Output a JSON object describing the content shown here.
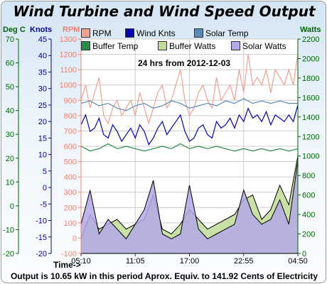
{
  "title": "Wind Turbine and Wind Speed Output",
  "subtitle": "24 hrs from 2012-12-03",
  "footer": "Output is 10.65 kW in this period Aprox. Equiv. to 141.92 Cents of Electricity",
  "time_label": "Time->",
  "axis_titles": {
    "deg_c": "Deg C",
    "knots": "Knots",
    "rpm": "RPM",
    "watts": "Watts"
  },
  "colors": {
    "rpm": "#f0a090",
    "wind_knts": "#0000b4",
    "solar_temp": "#5a8ab4",
    "buffer_temp": "#2a8a4a",
    "buffer_watts": "#c0dc98",
    "solar_watts": "#b4a8e8",
    "deg_axis": "#006400",
    "knots_axis": "#0000a0",
    "rpm_axis": "#f08070",
    "watts_axis": "#006400",
    "grid": "#cccccc",
    "frame": "#9a9a9a"
  },
  "legend": {
    "rpm": "RPM",
    "wind_knts": "Wind Knts",
    "solar_temp": "Solar Temp",
    "buffer_temp": "Buffer Temp",
    "buffer_watts": "Buffer Watts",
    "solar_watts": "Solar Watts"
  },
  "chart_data": {
    "type": "line",
    "title": "Wind Turbine and Wind Speed Output",
    "subtitle": "24 hrs from 2012-12-03",
    "x_ticks": [
      "05:10",
      "11:05",
      "17:00",
      "22:55",
      "04:50"
    ],
    "axes": {
      "deg_c": {
        "ticks": [
          "70",
          "60",
          "50",
          "40",
          "30",
          "20",
          "10",
          "0",
          "-10",
          "-20"
        ],
        "range": [
          -20,
          70
        ]
      },
      "knots": {
        "ticks": [
          "45",
          "40",
          "35",
          "30",
          "25",
          "20",
          "15",
          "10",
          "5",
          "0",
          "-5",
          "-10",
          "-15",
          "-20"
        ],
        "range": [
          -20,
          45
        ]
      },
      "rpm": {
        "ticks": [
          "1300",
          "1200",
          "1100",
          "1000",
          "900",
          "800",
          "700",
          "600",
          "500",
          "400",
          "300",
          "200",
          "100",
          "0",
          "-100"
        ],
        "range": [
          -100,
          1300
        ]
      },
      "watts": {
        "ticks": [
          "2200",
          "2000",
          "1800",
          "1600",
          "1400",
          "1200",
          "1000",
          "800",
          "600",
          "400",
          "200",
          "0"
        ],
        "range": [
          0,
          2200
        ]
      }
    },
    "series": [
      {
        "name": "RPM",
        "axis": "rpm",
        "kind": "line",
        "x": [
          0,
          0.5,
          1,
          1.5,
          2,
          2.5,
          3,
          3.5,
          4,
          4.5,
          5,
          5.5,
          6,
          6.5,
          7,
          7.5,
          8,
          8.5,
          9,
          9.5,
          10,
          10.5,
          11,
          11.5,
          12,
          12.5,
          13,
          13.5,
          14,
          14.5,
          15,
          15.5,
          16,
          16.5,
          17,
          17.5,
          18,
          18.5,
          19,
          19.5,
          20,
          20.5,
          21,
          21.5,
          22,
          22.5,
          23,
          23.5,
          24
        ],
        "values": [
          900,
          1000,
          850,
          950,
          1050,
          800,
          750,
          850,
          900,
          800,
          850,
          900,
          800,
          950,
          850,
          750,
          850,
          950,
          1000,
          850,
          900,
          1000,
          1100,
          900,
          800,
          850,
          950,
          1000,
          900,
          850,
          1050,
          900,
          950,
          1000,
          900,
          1100,
          950,
          1200,
          1000,
          1050,
          1000,
          1100,
          950,
          1100,
          1050,
          1000,
          1100,
          1000,
          1200
        ]
      },
      {
        "name": "Wind Knts",
        "axis": "knots",
        "kind": "line",
        "x": [
          0,
          0.5,
          1,
          1.5,
          2,
          2.5,
          3,
          3.5,
          4,
          4.5,
          5,
          5.5,
          6,
          6.5,
          7,
          7.5,
          8,
          8.5,
          9,
          9.5,
          10,
          10.5,
          11,
          11.5,
          12,
          12.5,
          13,
          13.5,
          14,
          14.5,
          15,
          15.5,
          16,
          16.5,
          17,
          17.5,
          18,
          18.5,
          19,
          19.5,
          20,
          20.5,
          21,
          21.5,
          22,
          22.5,
          23,
          23.5,
          24
        ],
        "values": [
          19,
          22,
          17,
          18,
          21,
          16,
          15,
          19,
          17,
          14,
          16,
          18,
          15,
          19,
          17,
          13,
          15,
          18,
          20,
          16,
          18,
          20,
          22,
          17,
          14,
          15,
          18,
          19,
          16,
          15,
          20,
          18,
          19,
          21,
          18,
          22,
          20,
          24,
          21,
          22,
          20,
          23,
          19,
          22,
          21,
          20,
          22,
          20,
          25
        ]
      },
      {
        "name": "Solar Temp",
        "axis": "deg_c",
        "kind": "line",
        "x": [
          0,
          1,
          2,
          3,
          4,
          5,
          6,
          7,
          8,
          9,
          10,
          11,
          12,
          13,
          14,
          15,
          16,
          17,
          18,
          19,
          20,
          21,
          22,
          23,
          24
        ],
        "values": [
          43,
          44,
          42,
          43,
          41,
          40,
          42,
          43,
          41,
          42,
          44,
          43,
          41,
          42,
          43,
          42,
          44,
          43,
          45,
          43,
          44,
          43,
          44,
          43,
          43
        ]
      },
      {
        "name": "Buffer Temp",
        "axis": "deg_c",
        "kind": "line",
        "x": [
          0,
          1,
          2,
          3,
          4,
          5,
          6,
          7,
          8,
          9,
          10,
          11,
          12,
          13,
          14,
          15,
          16,
          17,
          18,
          19,
          20,
          21,
          22,
          23,
          24
        ],
        "values": [
          25,
          23,
          24,
          26,
          24,
          25,
          24,
          23,
          24,
          25,
          24,
          26,
          24,
          25,
          24,
          25,
          24,
          23,
          24,
          23,
          24,
          23,
          24,
          23,
          24
        ]
      },
      {
        "name": "Buffer Watts",
        "axis": "watts",
        "kind": "area",
        "x": [
          0,
          1,
          2,
          3,
          4,
          5,
          6,
          7,
          8,
          9,
          10,
          11,
          12,
          13,
          14,
          15,
          16,
          17,
          18,
          19,
          20,
          21,
          22,
          23,
          24
        ],
        "values": [
          150,
          400,
          250,
          300,
          350,
          250,
          300,
          350,
          600,
          250,
          200,
          300,
          450,
          350,
          250,
          300,
          350,
          400,
          550,
          600,
          350,
          450,
          700,
          500,
          1000
        ]
      },
      {
        "name": "Solar Watts",
        "axis": "watts",
        "kind": "area",
        "x": [
          0,
          1,
          2,
          3,
          4,
          5,
          6,
          7,
          8,
          9,
          10,
          11,
          12,
          13,
          14,
          15,
          16,
          17,
          18,
          19,
          20,
          21,
          22,
          23,
          24
        ],
        "values": [
          300,
          650,
          200,
          350,
          250,
          150,
          300,
          450,
          750,
          200,
          150,
          200,
          700,
          250,
          150,
          200,
          250,
          300,
          650,
          400,
          300,
          350,
          550,
          300,
          950
        ]
      }
    ]
  }
}
